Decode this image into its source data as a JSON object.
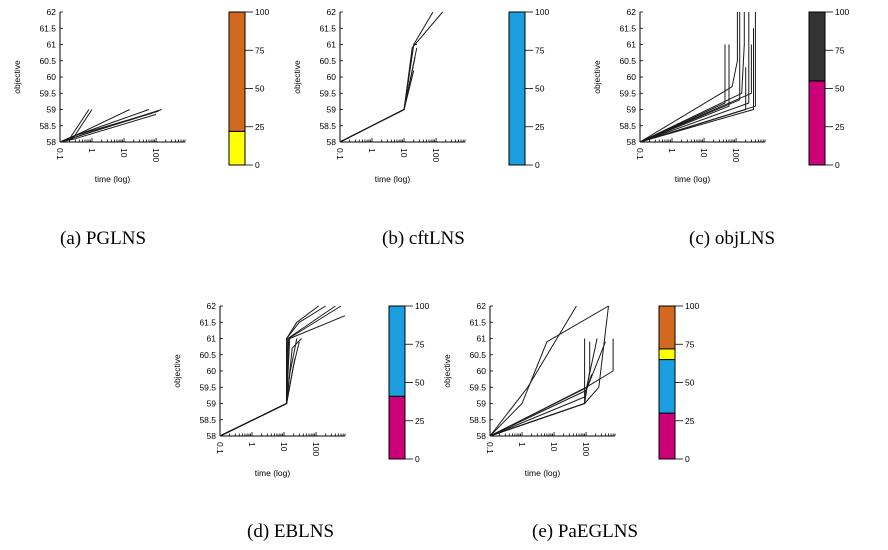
{
  "chart_data": [
    {
      "id": "a",
      "caption": "(a)  PGLNS",
      "type": "line",
      "xlabel": "time (log)",
      "ylabel": "objective",
      "xscale": "log",
      "xlim": [
        0.1,
        800
      ],
      "xticks": [
        "0.1",
        "1",
        "10",
        "100"
      ],
      "ylim": [
        58,
        62
      ],
      "yticks": [
        "58",
        "58.5",
        "59",
        "59.5",
        "60",
        "60.5",
        "61",
        "61.5",
        "62"
      ],
      "series": [
        {
          "x": [
            0.1,
            0.2,
            0.8
          ],
          "y": [
            58,
            58.1,
            59
          ]
        },
        {
          "x": [
            0.1,
            0.25,
            1.0
          ],
          "y": [
            58,
            58.1,
            59
          ]
        },
        {
          "x": [
            0.1,
            0.3,
            15
          ],
          "y": [
            58,
            58.2,
            59
          ]
        },
        {
          "x": [
            0.1,
            0.3,
            80
          ],
          "y": [
            58,
            58.15,
            58.9
          ]
        },
        {
          "x": [
            0.1,
            0.3,
            60
          ],
          "y": [
            58,
            58.2,
            59
          ]
        },
        {
          "x": [
            0.1,
            0.3,
            150
          ],
          "y": [
            58,
            58.15,
            59
          ]
        },
        {
          "x": [
            0.1,
            0.3,
            100
          ],
          "y": [
            58,
            58.1,
            58.85
          ]
        },
        {
          "x": [
            0.1,
            0.3,
            120
          ],
          "y": [
            58,
            58.2,
            58.95
          ]
        }
      ],
      "bar": {
        "ticks": [
          "0",
          "25",
          "50",
          "75",
          "100"
        ],
        "segments": [
          {
            "value": 22,
            "color": "#ffff00"
          },
          {
            "value": 78,
            "color": "#d2691e"
          }
        ]
      }
    },
    {
      "id": "b",
      "caption": "(b)  cftLNS",
      "type": "line",
      "xlabel": "time (log)",
      "ylabel": "objective",
      "xscale": "log",
      "xlim": [
        0.1,
        800
      ],
      "xticks": [
        "0.1",
        "1",
        "10",
        "100"
      ],
      "ylim": [
        58,
        62
      ],
      "yticks": [
        "58",
        "58.5",
        "59",
        "59.5",
        "60",
        "60.5",
        "61",
        "61.5",
        "62"
      ],
      "series": [
        {
          "x": [
            0.1,
            10,
            20,
            80
          ],
          "y": [
            58,
            59,
            61,
            62
          ]
        },
        {
          "x": [
            0.1,
            10,
            18,
            160
          ],
          "y": [
            58,
            59,
            60.9,
            62
          ]
        },
        {
          "x": [
            0.1,
            10,
            20,
            25
          ],
          "y": [
            58,
            59,
            61,
            61
          ]
        },
        {
          "x": [
            0.1,
            10,
            22
          ],
          "y": [
            58,
            59,
            60.6
          ]
        },
        {
          "x": [
            0.1,
            10,
            20
          ],
          "y": [
            58,
            59,
            60.2
          ]
        },
        {
          "x": [
            0.1,
            10,
            25
          ],
          "y": [
            58,
            59,
            60.9
          ]
        }
      ],
      "bar": {
        "ticks": [
          "0",
          "25",
          "50",
          "75",
          "100"
        ],
        "segments": [
          {
            "value": 100,
            "color": "#1b9fe0"
          }
        ]
      }
    },
    {
      "id": "c",
      "caption": "(c)  objLNS",
      "type": "line",
      "xlabel": "time (log)",
      "ylabel": "objective",
      "xscale": "log",
      "xlim": [
        0.1,
        800
      ],
      "xticks": [
        "0.1",
        "1",
        "10",
        "100"
      ],
      "ylim": [
        58,
        62
      ],
      "yticks": [
        "58",
        "58.5",
        "59",
        "59.5",
        "60",
        "60.5",
        "61",
        "61.5",
        "62"
      ],
      "series": [
        {
          "x": [
            0.1,
            45,
            45
          ],
          "y": [
            58,
            59.2,
            61
          ]
        },
        {
          "x": [
            0.1,
            60,
            60
          ],
          "y": [
            58,
            59.1,
            61
          ]
        },
        {
          "x": [
            0.1,
            75,
            110,
            110
          ],
          "y": [
            58,
            59.7,
            60.5,
            62
          ]
        },
        {
          "x": [
            0.1,
            130,
            130
          ],
          "y": [
            58,
            59.3,
            62
          ]
        },
        {
          "x": [
            0.1,
            150,
            180,
            180
          ],
          "y": [
            58,
            59.5,
            61,
            62
          ]
        },
        {
          "x": [
            0.1,
            250,
            250
          ],
          "y": [
            58,
            59.2,
            62
          ]
        },
        {
          "x": [
            0.1,
            300,
            300
          ],
          "y": [
            58,
            59.5,
            61
          ]
        },
        {
          "x": [
            0.1,
            350,
            350
          ],
          "y": [
            58,
            59,
            61.5
          ]
        },
        {
          "x": [
            0.1,
            200,
            200
          ],
          "y": [
            58,
            59,
            60.3
          ]
        },
        {
          "x": [
            0.1,
            400,
            400
          ],
          "y": [
            58,
            59.1,
            62
          ]
        }
      ],
      "bar": {
        "ticks": [
          "0",
          "25",
          "50",
          "75",
          "100"
        ],
        "segments": [
          {
            "value": 55,
            "color": "#cc0077"
          },
          {
            "value": 45,
            "color": "#333333"
          }
        ]
      }
    },
    {
      "id": "d",
      "caption": "(d)  EBLNS",
      "type": "line",
      "xlabel": "time (log)",
      "ylabel": "objective",
      "xscale": "log",
      "xlim": [
        0.1,
        800
      ],
      "xticks": [
        "0.1",
        "1",
        "10",
        "100"
      ],
      "ylim": [
        58,
        62
      ],
      "yticks": [
        "58",
        "58.5",
        "59",
        "59.5",
        "60",
        "60.5",
        "61",
        "61.5",
        "62"
      ],
      "series": [
        {
          "x": [
            0.1,
            12,
            12,
            25,
            120
          ],
          "y": [
            58,
            59,
            61,
            61.5,
            62
          ]
        },
        {
          "x": [
            0.1,
            12,
            12,
            30,
            200
          ],
          "y": [
            58,
            59,
            61,
            61.5,
            62
          ]
        },
        {
          "x": [
            0.1,
            12,
            13,
            400
          ],
          "y": [
            58,
            59,
            61,
            62
          ]
        },
        {
          "x": [
            0.1,
            12,
            14,
            600
          ],
          "y": [
            58,
            59,
            61,
            62
          ]
        },
        {
          "x": [
            0.1,
            12,
            15,
            800
          ],
          "y": [
            58,
            59,
            61,
            61.7
          ]
        },
        {
          "x": [
            0.1,
            12,
            18,
            35
          ],
          "y": [
            58,
            59,
            60.7,
            61
          ]
        },
        {
          "x": [
            0.1,
            12,
            20,
            30
          ],
          "y": [
            58,
            59,
            60.2,
            60.9
          ]
        },
        {
          "x": [
            0.1,
            12,
            15,
            25
          ],
          "y": [
            58,
            59,
            59.9,
            61
          ]
        },
        {
          "x": [
            0.1,
            12,
            22
          ],
          "y": [
            58,
            59,
            60.4
          ]
        }
      ],
      "bar": {
        "ticks": [
          "0",
          "25",
          "50",
          "75",
          "100"
        ],
        "segments": [
          {
            "value": 41,
            "color": "#cc0077"
          },
          {
            "value": 59,
            "color": "#1b9fe0"
          }
        ]
      }
    },
    {
      "id": "e",
      "caption": "(e)  PaEGLNS",
      "type": "line",
      "xlabel": "time (log)",
      "ylabel": "objective",
      "xscale": "log",
      "xlim": [
        0.1,
        800
      ],
      "xticks": [
        "0.1",
        "1",
        "10",
        "100"
      ],
      "ylim": [
        58,
        62
      ],
      "yticks": [
        "58",
        "58.5",
        "59",
        "59.5",
        "60",
        "60.5",
        "61",
        "61.5",
        "62"
      ],
      "series": [
        {
          "x": [
            0.1,
            1,
            6,
            500
          ],
          "y": [
            58,
            59,
            60.9,
            62
          ]
        },
        {
          "x": [
            0.1,
            1.5,
            50
          ],
          "y": [
            58,
            59.5,
            62
          ]
        },
        {
          "x": [
            0.1,
            90,
            90
          ],
          "y": [
            58,
            59,
            61
          ]
        },
        {
          "x": [
            0.1,
            90,
            250,
            500
          ],
          "y": [
            58,
            59,
            59.5,
            62
          ]
        },
        {
          "x": [
            0.1,
            90,
            130,
            130
          ],
          "y": [
            58,
            59,
            60,
            60.9
          ]
        },
        {
          "x": [
            0.1,
            90,
            200,
            220
          ],
          "y": [
            58,
            59.2,
            60.8,
            61
          ]
        },
        {
          "x": [
            0.1,
            100,
            700,
            700
          ],
          "y": [
            58,
            59.5,
            60,
            61
          ]
        },
        {
          "x": [
            0.1,
            110,
            400
          ],
          "y": [
            58,
            59.5,
            60.9
          ]
        },
        {
          "x": [
            0.1,
            100,
            150
          ],
          "y": [
            58,
            59.4,
            59.9
          ]
        }
      ],
      "bar": {
        "ticks": [
          "0",
          "25",
          "50",
          "75",
          "100"
        ],
        "segments": [
          {
            "value": 30,
            "color": "#cc0077"
          },
          {
            "value": 35,
            "color": "#1b9fe0"
          },
          {
            "value": 7,
            "color": "#ffff00"
          },
          {
            "value": 28,
            "color": "#d2691e"
          }
        ]
      }
    }
  ]
}
